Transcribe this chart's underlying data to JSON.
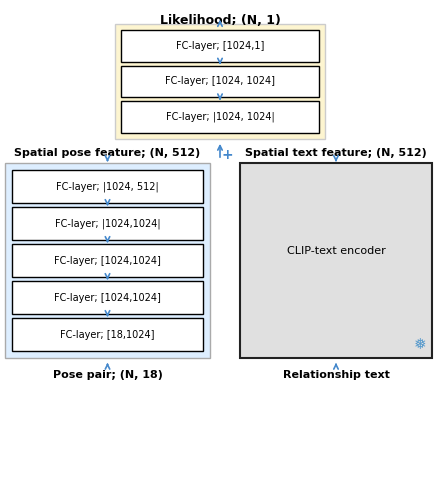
{
  "title": "Likelihood; (N, 1)",
  "title_fontsize": 9,
  "title_fontweight": "bold",
  "bg_color": "#ffffff",
  "top_box_bg": "#fdf5d0",
  "top_box_edge": "#cccccc",
  "top_layers": [
    "FC-layer; [1024,1]",
    "FC-layer; [1024, 1024]",
    "FC-layer; |1024, 1024|"
  ],
  "left_box_bg": "#ddeeff",
  "left_box_edge": "#aaaaaa",
  "left_layers": [
    "FC-layer; |1024, 512|",
    "FC-layer; |1024,1024|",
    "FC-layer; [1024,1024]",
    "FC-layer; [1024,1024]",
    "FC-layer; [18,1024]"
  ],
  "right_box_bg": "#e0e0e0",
  "right_box_edge": "#222222",
  "right_box_label": "CLIP-text encoder",
  "arrow_color": "#4488cc",
  "plus_color": "#4488cc",
  "label_pose_feature": "Spatial pose feature; (N, 512)",
  "label_text_feature": "Spatial text feature; (N, 512)",
  "label_pose_pair": "Pose pair; (N, 18)",
  "label_rel_text": "Relationship text",
  "snowflake": "❅",
  "snowflake_color": "#5599cc",
  "inner_fontsize": 7.0,
  "label_fontsize": 8.0
}
